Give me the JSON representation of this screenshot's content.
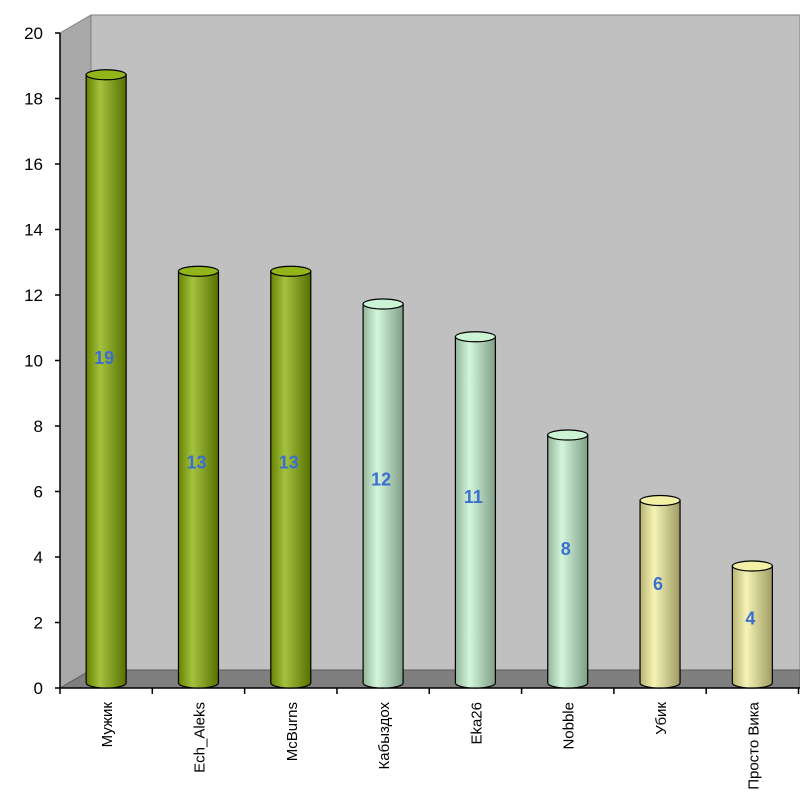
{
  "chart_data": {
    "type": "bar",
    "style": "3d-cylinder",
    "title": "",
    "xlabel": "",
    "ylabel": "",
    "ylim": [
      0,
      20
    ],
    "yticks": [
      0,
      2,
      4,
      6,
      8,
      10,
      12,
      14,
      16,
      18,
      20
    ],
    "grid": false,
    "legend": "none",
    "categories": [
      "Мужик",
      "Ech_Aleks",
      "McBurns",
      "Кабыздох",
      "Eka26",
      "Nobble",
      "Убик",
      "Просто Вика"
    ],
    "values": [
      19,
      13,
      13,
      12,
      11,
      8,
      6,
      4
    ],
    "data_labels": [
      "19",
      "13",
      "13",
      "12",
      "11",
      "8",
      "6",
      "4"
    ],
    "bar_colors": [
      "#86ad00",
      "#86ad00",
      "#86ad00",
      "#c4f3cf",
      "#c4f3cf",
      "#c4f3cf",
      "#f3ef9c",
      "#f3ef9c"
    ],
    "colors": {
      "wall": "#c0c0c0",
      "floor": "#7f7f7f",
      "label": "#3a6fd0"
    }
  }
}
